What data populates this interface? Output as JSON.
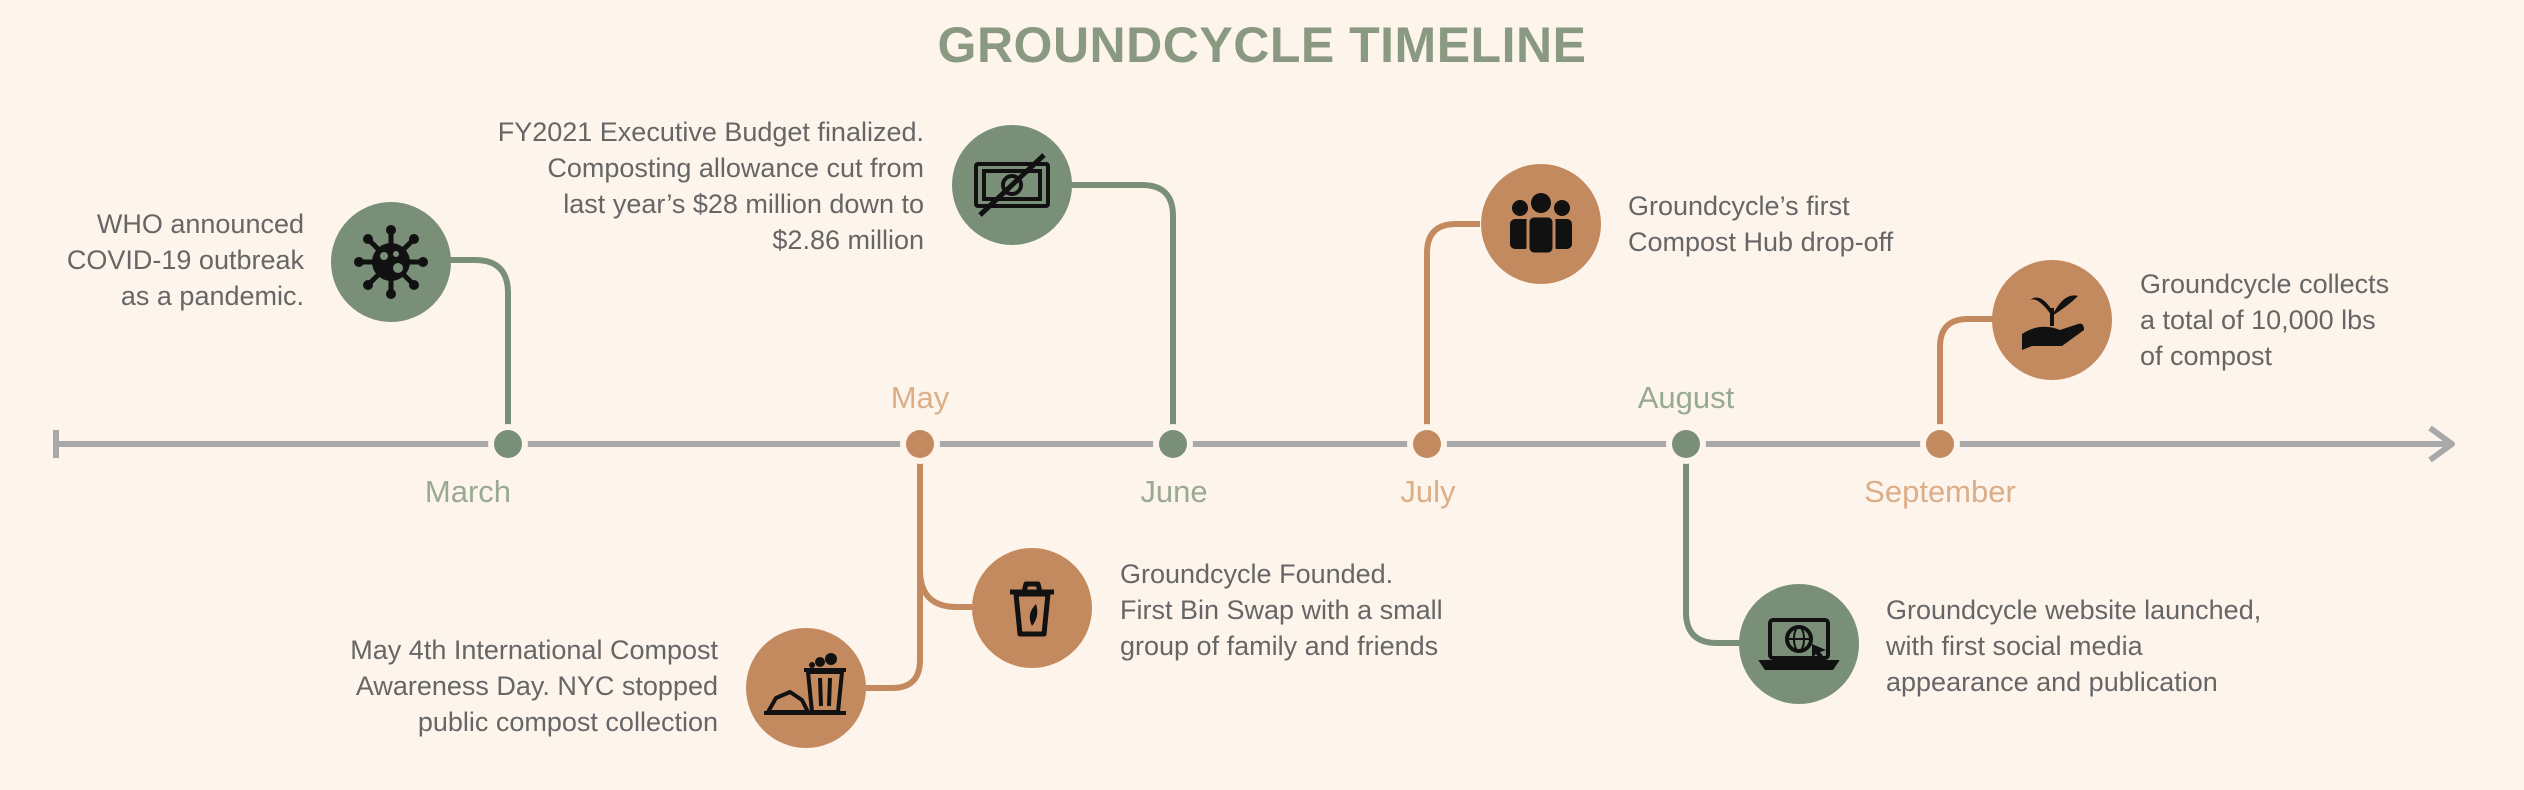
{
  "title": "GROUNDCYCLE TIMELINE",
  "colors": {
    "green": "#7a8f78",
    "orange": "#c48a5f",
    "axis": "#a9a9a9",
    "month_green": "#9aaa92",
    "month_orange": "#dcae88",
    "text": "#666666",
    "background": "#fdf4ec"
  },
  "months": {
    "march": "March",
    "may": "May",
    "june": "June",
    "july": "July",
    "august": "August",
    "september": "September"
  },
  "events": {
    "who": {
      "lines": [
        "WHO announced",
        "COVID-19 outbreak",
        "as a pandemic."
      ],
      "icon": "virus-icon"
    },
    "budget": {
      "lines": [
        "FY2021 Executive Budget finalized.",
        "Composting allowance cut from",
        "last year’s $28 million down to",
        "$2.86 million"
      ],
      "icon": "no-money-icon"
    },
    "hub": {
      "lines": [
        "Groundcycle’s first",
        "Compost Hub drop-off"
      ],
      "icon": "people-group-icon"
    },
    "compost_total": {
      "lines": [
        "Groundcycle collects",
        "a total of 10,000 lbs",
        "of compost"
      ],
      "icon": "hand-sprout-icon"
    },
    "founded": {
      "lines": [
        "Groundcycle Founded.",
        "First Bin Swap with a small",
        "group of family and friends"
      ],
      "icon": "compost-bin-icon"
    },
    "awareness": {
      "lines": [
        "May 4th International Compost",
        "Awareness Day. NYC stopped",
        "public compost collection"
      ],
      "icon": "trash-pile-icon"
    },
    "website": {
      "lines": [
        "Groundcycle website launched,",
        "with first social media",
        "appearance and publication"
      ],
      "icon": "laptop-globe-icon"
    }
  }
}
